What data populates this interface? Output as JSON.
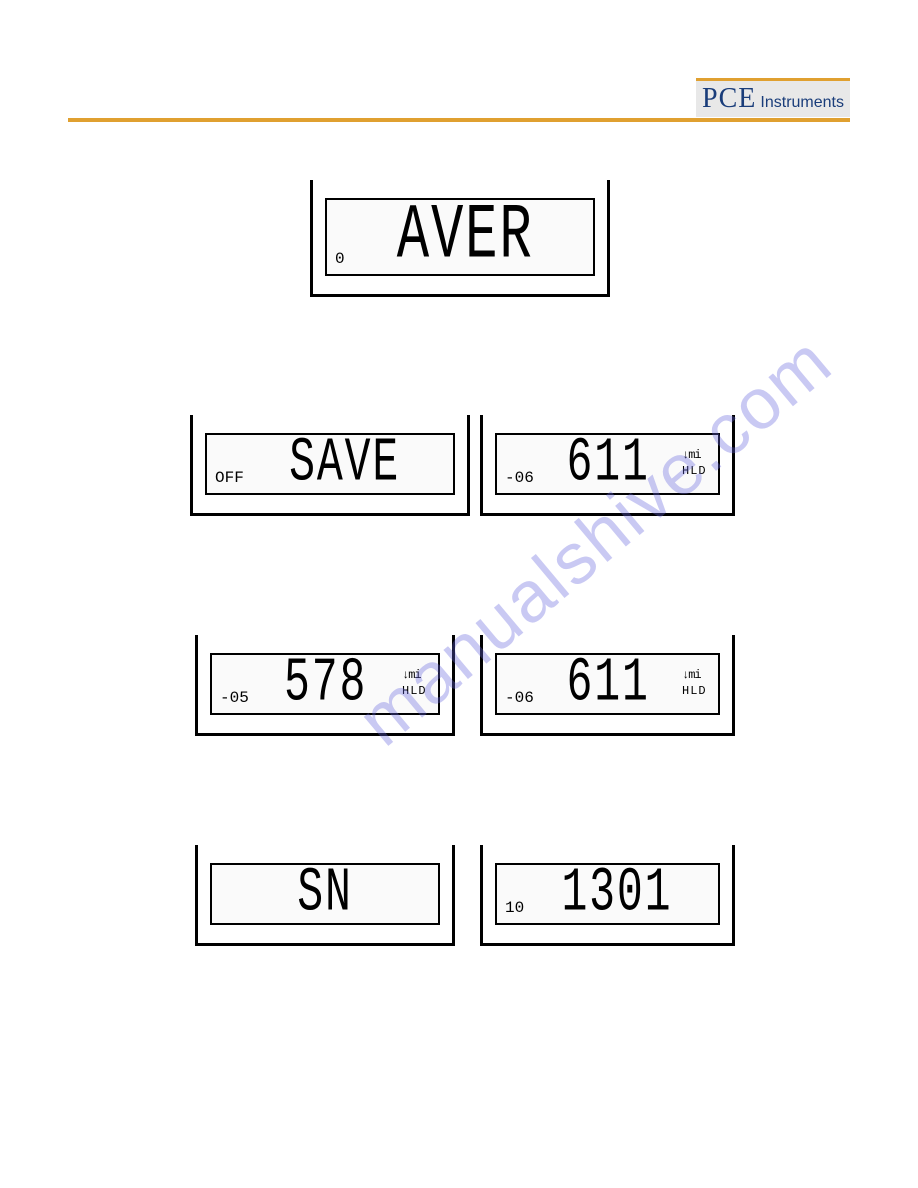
{
  "header": {
    "logo_main": "PCE",
    "logo_sub": "Instruments",
    "logo_color": "#1a3d7a",
    "bar_color": "#e0a030"
  },
  "watermark": "manualshive.com",
  "displays": [
    {
      "id": "d1",
      "left_small": "0",
      "main": "AVER",
      "right_top": "",
      "right_bot": ""
    },
    {
      "id": "d2",
      "left_small": "OFF",
      "main": "SAVE",
      "right_top": "",
      "right_bot": ""
    },
    {
      "id": "d3",
      "left_small": "-06",
      "main": "611",
      "right_top": "↓mi",
      "right_bot": "HLD"
    },
    {
      "id": "d4",
      "left_small": "-05",
      "main": "578",
      "right_top": "↓mi",
      "right_bot": "HLD"
    },
    {
      "id": "d5",
      "left_small": "-06",
      "main": "611",
      "right_top": "↓mi",
      "right_bot": "HLD"
    },
    {
      "id": "d6",
      "left_small": "",
      "main": "SN",
      "right_top": "",
      "right_bot": ""
    },
    {
      "id": "d7",
      "left_small": "10",
      "main": "1301",
      "right_top": "",
      "right_bot": ""
    }
  ]
}
